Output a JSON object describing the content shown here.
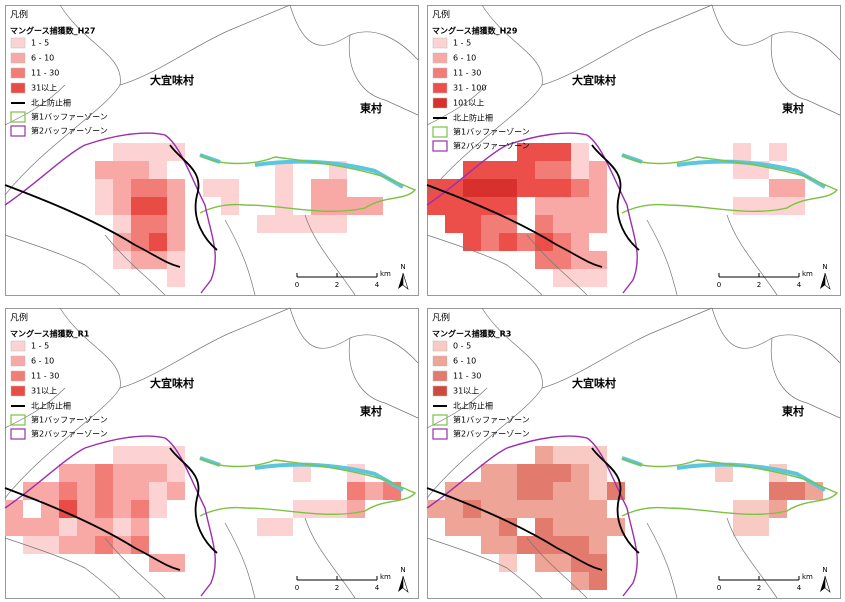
{
  "panels": [
    {
      "legend_heading": "凡例",
      "legend_title": "マングース捕獲数_H27",
      "classes": [
        {
          "label": "1 - 5",
          "color": "#fcd3d2"
        },
        {
          "label": "6 - 10",
          "color": "#f8a9a5"
        },
        {
          "label": "11 - 30",
          "color": "#f27d76"
        },
        {
          "label": "31以上",
          "color": "#e94c45"
        }
      ],
      "lines": [
        {
          "label": "北上防止柵",
          "color": "#000000"
        },
        {
          "label": "第1バッファーゾーン",
          "color": "#7cc242"
        },
        {
          "label": "第2バッファーゾーン",
          "color": "#9b2fae"
        }
      ],
      "places": [
        "大宜味村",
        "東村"
      ],
      "scale": {
        "ticks": [
          0,
          2,
          4
        ],
        "unit": "km"
      },
      "north": "N"
    },
    {
      "legend_heading": "凡例",
      "legend_title": "マングース捕獲数_H29",
      "classes": [
        {
          "label": "1 - 5",
          "color": "#fcd3d2"
        },
        {
          "label": "6 - 10",
          "color": "#f8a9a5"
        },
        {
          "label": "11 - 30",
          "color": "#f27d76"
        },
        {
          "label": "31 - 100",
          "color": "#ec4f4a"
        },
        {
          "label": "101以上",
          "color": "#d8302c"
        }
      ],
      "lines": [
        {
          "label": "北上防止柵",
          "color": "#000000"
        },
        {
          "label": "第1バッファーゾーン",
          "color": "#7cc242"
        },
        {
          "label": "第2バッファーゾーン",
          "color": "#9b2fae"
        }
      ],
      "places": [
        "大宜味村",
        "東村"
      ],
      "scale": {
        "ticks": [
          0,
          2,
          4
        ],
        "unit": "km"
      },
      "north": "N"
    },
    {
      "legend_heading": "凡例",
      "legend_title": "マングース捕獲数_R1",
      "classes": [
        {
          "label": "1 - 5",
          "color": "#fcd3d2"
        },
        {
          "label": "6 - 10",
          "color": "#f8a9a5"
        },
        {
          "label": "11 - 30",
          "color": "#f27d76"
        },
        {
          "label": "31以上",
          "color": "#e94c45"
        }
      ],
      "lines": [
        {
          "label": "北上防止柵",
          "color": "#000000"
        },
        {
          "label": "第1バッファーゾーン",
          "color": "#7cc242"
        },
        {
          "label": "第2バッファーゾーン",
          "color": "#9b2fae"
        }
      ],
      "places": [
        "大宜味村",
        "東村"
      ],
      "scale": {
        "ticks": [
          0,
          2,
          4
        ],
        "unit": "km"
      },
      "north": "N"
    },
    {
      "legend_heading": "凡例",
      "legend_title": "マングース捕獲数_R3",
      "classes": [
        {
          "label": "0 - 5",
          "color": "#f7cbc4"
        },
        {
          "label": "6 - 10",
          "color": "#eea496"
        },
        {
          "label": "11 - 30",
          "color": "#e27b6d"
        },
        {
          "label": "31以上",
          "color": "#cf4a3e"
        }
      ],
      "lines": [
        {
          "label": "北上防止柵",
          "color": "#000000"
        },
        {
          "label": "第1バッファーゾーン",
          "color": "#7cc242"
        },
        {
          "label": "第2バッファーゾーン",
          "color": "#9b2fae"
        }
      ],
      "places": [
        "大宜味村",
        "東村"
      ],
      "scale": {
        "ticks": [
          0,
          2,
          4
        ],
        "unit": "km"
      },
      "north": "N"
    }
  ]
}
